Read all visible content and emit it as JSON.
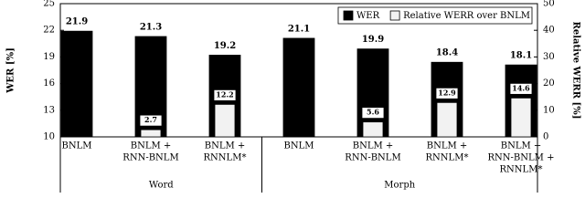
{
  "chart_data": {
    "type": "bar",
    "ylabel": "WER [%]",
    "y2label": "Relative WERR [%]",
    "categories": [
      [
        "BNLM"
      ],
      [
        "BNLM +",
        "RNN-BNLM"
      ],
      [
        "BNLM +",
        "RNNLM*"
      ],
      [
        "BNLM"
      ],
      [
        "BNLM +",
        "RNN-BNLM"
      ],
      [
        "BNLM +",
        "RNNLM*"
      ],
      [
        "BNLM +",
        "RNN-BNLM +",
        "RNNLM*"
      ]
    ],
    "groups": [
      "Word",
      "Morph"
    ],
    "series": [
      {
        "name": "WER",
        "color": "#000000",
        "values": [
          21.9,
          21.3,
          19.2,
          21.1,
          19.9,
          18.4,
          18.1
        ]
      },
      {
        "name": "Relative WERR over BNLM",
        "color": "#f2f2f2",
        "axis": "y2",
        "values": [
          null,
          2.7,
          12.2,
          null,
          5.6,
          12.9,
          14.6
        ]
      }
    ],
    "ylim": [
      10,
      25
    ],
    "yticks": [
      10,
      13,
      16,
      19,
      22,
      25
    ],
    "y2lim": [
      0,
      50
    ],
    "y2ticks": [
      0,
      10,
      20,
      30,
      40,
      50
    ],
    "legend": "upper right"
  }
}
